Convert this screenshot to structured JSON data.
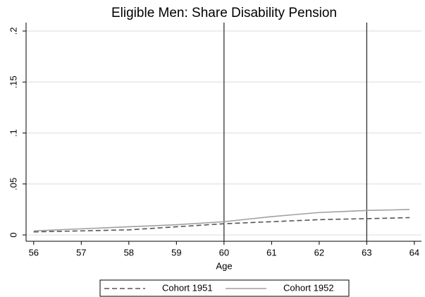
{
  "chart_data": {
    "type": "line",
    "title": "Eligible Men: Share Disability Pension",
    "xlabel": "Age",
    "x": [
      56,
      56.5,
      57,
      57.5,
      58,
      58.5,
      59,
      59.5,
      60,
      60.5,
      61,
      61.5,
      62,
      62.5,
      63,
      63.5,
      63.9
    ],
    "series": [
      {
        "name": "Cohort 1951",
        "color": "#555555",
        "dash": true,
        "values": [
          0.003,
          0.0035,
          0.004,
          0.0045,
          0.005,
          0.0065,
          0.008,
          0.0095,
          0.011,
          0.012,
          0.013,
          0.014,
          0.015,
          0.0155,
          0.016,
          0.0165,
          0.017
        ]
      },
      {
        "name": "Cohort 1952",
        "color": "#a0a0a0",
        "dash": false,
        "values": [
          0.004,
          0.005,
          0.006,
          0.007,
          0.008,
          0.009,
          0.01,
          0.0115,
          0.013,
          0.0155,
          0.018,
          0.02,
          0.022,
          0.023,
          0.024,
          0.0245,
          0.025
        ]
      }
    ],
    "xlim": [
      55.84,
      64.15
    ],
    "ylim": [
      -0.0062,
      0.2083
    ],
    "xticks": [
      56,
      57,
      58,
      59,
      60,
      61,
      62,
      63,
      64
    ],
    "yticks": [
      0,
      {
        "value": 0.05,
        "label": ".05"
      },
      {
        "value": 0.1,
        "label": ".1"
      },
      {
        "value": 0.15,
        "label": ".15"
      },
      {
        "value": 0.2,
        "label": ".2"
      }
    ],
    "vlines": [
      60,
      63
    ],
    "grid": true
  }
}
